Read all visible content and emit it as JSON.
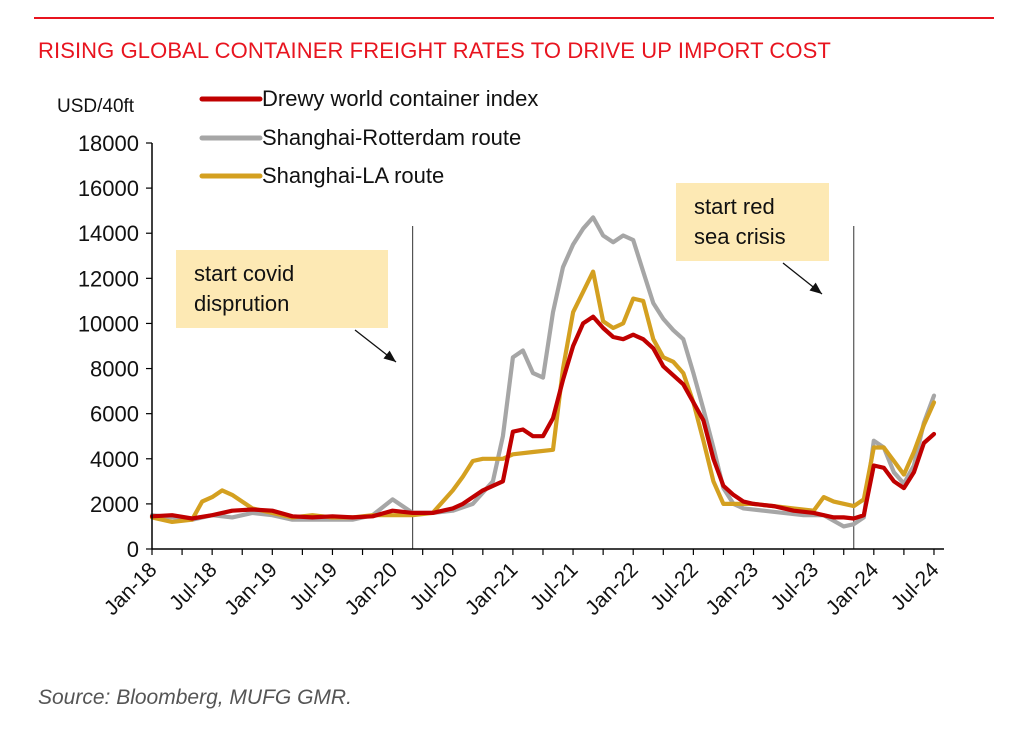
{
  "title": "RISING GLOBAL CONTAINER FREIGHT RATES TO DRIVE UP IMPORT COST",
  "source": "Source: Bloomberg, MUFG GMR.",
  "chart_data": {
    "type": "line",
    "ylabel": "USD/40ft",
    "ylim": [
      0,
      18000
    ],
    "yticks": [
      "0",
      "2000",
      "4000",
      "6000",
      "8000",
      "10000",
      "12000",
      "14000",
      "16000",
      "18000"
    ],
    "xlim": [
      "2018-01",
      "2024-08"
    ],
    "xticks": [
      {
        "label": "Jan-18",
        "date": "2018-01"
      },
      {
        "label": "Jul-18",
        "date": "2018-07"
      },
      {
        "label": "Jan-19",
        "date": "2019-01"
      },
      {
        "label": "Jul-19",
        "date": "2019-07"
      },
      {
        "label": "Jan-20",
        "date": "2020-01"
      },
      {
        "label": "Jul-20",
        "date": "2020-07"
      },
      {
        "label": "Jan-21",
        "date": "2021-01"
      },
      {
        "label": "Jul-21",
        "date": "2021-07"
      },
      {
        "label": "Jan-22",
        "date": "2022-01"
      },
      {
        "label": "Jul-22",
        "date": "2022-07"
      },
      {
        "label": "Jan-23",
        "date": "2023-01"
      },
      {
        "label": "Jul-23",
        "date": "2023-07"
      },
      {
        "label": "Jan-24",
        "date": "2024-01"
      },
      {
        "label": "Jul-24",
        "date": "2024-07"
      }
    ],
    "grid": false,
    "legend_position": "top-left",
    "series": [
      {
        "name": "Drewy world container index",
        "color": "#c00000",
        "points": [
          [
            "2018-01",
            1450
          ],
          [
            "2018-03",
            1500
          ],
          [
            "2018-05",
            1350
          ],
          [
            "2018-07",
            1500
          ],
          [
            "2018-09",
            1700
          ],
          [
            "2018-11",
            1750
          ],
          [
            "2019-01",
            1700
          ],
          [
            "2019-03",
            1450
          ],
          [
            "2019-05",
            1400
          ],
          [
            "2019-07",
            1450
          ],
          [
            "2019-09",
            1400
          ],
          [
            "2019-11",
            1450
          ],
          [
            "2020-01",
            1700
          ],
          [
            "2020-03",
            1600
          ],
          [
            "2020-05",
            1600
          ],
          [
            "2020-07",
            1800
          ],
          [
            "2020-08",
            2000
          ],
          [
            "2020-10",
            2600
          ],
          [
            "2020-12",
            3000
          ],
          [
            "2021-01",
            5200
          ],
          [
            "2021-02",
            5300
          ],
          [
            "2021-03",
            5000
          ],
          [
            "2021-04",
            5000
          ],
          [
            "2021-05",
            5800
          ],
          [
            "2021-06",
            7500
          ],
          [
            "2021-07",
            9000
          ],
          [
            "2021-08",
            10000
          ],
          [
            "2021-09",
            10300
          ],
          [
            "2021-10",
            9800
          ],
          [
            "2021-11",
            9400
          ],
          [
            "2021-12",
            9300
          ],
          [
            "2022-01",
            9500
          ],
          [
            "2022-02",
            9300
          ],
          [
            "2022-03",
            8900
          ],
          [
            "2022-04",
            8100
          ],
          [
            "2022-05",
            7700
          ],
          [
            "2022-06",
            7300
          ],
          [
            "2022-07",
            6500
          ],
          [
            "2022-08",
            5700
          ],
          [
            "2022-09",
            4000
          ],
          [
            "2022-10",
            2800
          ],
          [
            "2022-11",
            2400
          ],
          [
            "2022-12",
            2100
          ],
          [
            "2023-01",
            2000
          ],
          [
            "2023-03",
            1900
          ],
          [
            "2023-05",
            1700
          ],
          [
            "2023-07",
            1600
          ],
          [
            "2023-09",
            1400
          ],
          [
            "2023-10",
            1400
          ],
          [
            "2023-11",
            1350
          ],
          [
            "2023-12",
            1500
          ],
          [
            "2024-01",
            3700
          ],
          [
            "2024-02",
            3600
          ],
          [
            "2024-03",
            3000
          ],
          [
            "2024-04",
            2700
          ],
          [
            "2024-05",
            3400
          ],
          [
            "2024-06",
            4700
          ],
          [
            "2024-07",
            5100
          ]
        ]
      },
      {
        "name": "Shanghai-Rotterdam route",
        "color": "#a6a6a6",
        "points": [
          [
            "2018-01",
            1500
          ],
          [
            "2018-03",
            1400
          ],
          [
            "2018-05",
            1300
          ],
          [
            "2018-07",
            1500
          ],
          [
            "2018-09",
            1400
          ],
          [
            "2018-11",
            1600
          ],
          [
            "2019-01",
            1500
          ],
          [
            "2019-03",
            1300
          ],
          [
            "2019-05",
            1300
          ],
          [
            "2019-07",
            1300
          ],
          [
            "2019-09",
            1300
          ],
          [
            "2019-11",
            1500
          ],
          [
            "2020-01",
            2200
          ],
          [
            "2020-02",
            1900
          ],
          [
            "2020-03",
            1600
          ],
          [
            "2020-05",
            1600
          ],
          [
            "2020-07",
            1700
          ],
          [
            "2020-09",
            2000
          ],
          [
            "2020-11",
            3000
          ],
          [
            "2020-12",
            5000
          ],
          [
            "2021-01",
            8500
          ],
          [
            "2021-02",
            8800
          ],
          [
            "2021-03",
            7800
          ],
          [
            "2021-04",
            7600
          ],
          [
            "2021-05",
            10500
          ],
          [
            "2021-06",
            12500
          ],
          [
            "2021-07",
            13500
          ],
          [
            "2021-08",
            14200
          ],
          [
            "2021-09",
            14700
          ],
          [
            "2021-10",
            13900
          ],
          [
            "2021-11",
            13600
          ],
          [
            "2021-12",
            13900
          ],
          [
            "2022-01",
            13700
          ],
          [
            "2022-02",
            12300
          ],
          [
            "2022-03",
            10900
          ],
          [
            "2022-04",
            10200
          ],
          [
            "2022-05",
            9700
          ],
          [
            "2022-06",
            9300
          ],
          [
            "2022-07",
            7800
          ],
          [
            "2022-08",
            6200
          ],
          [
            "2022-09",
            4500
          ],
          [
            "2022-10",
            2700
          ],
          [
            "2022-11",
            2000
          ],
          [
            "2022-12",
            1800
          ],
          [
            "2023-02",
            1700
          ],
          [
            "2023-04",
            1600
          ],
          [
            "2023-06",
            1500
          ],
          [
            "2023-08",
            1500
          ],
          [
            "2023-10",
            1000
          ],
          [
            "2023-11",
            1100
          ],
          [
            "2023-12",
            1400
          ],
          [
            "2024-01",
            4800
          ],
          [
            "2024-02",
            4500
          ],
          [
            "2024-03",
            3400
          ],
          [
            "2024-04",
            2900
          ],
          [
            "2024-05",
            3700
          ],
          [
            "2024-06",
            5600
          ],
          [
            "2024-07",
            6800
          ]
        ]
      },
      {
        "name": "Shanghai-LA route",
        "color": "#d4a020",
        "points": [
          [
            "2018-01",
            1400
          ],
          [
            "2018-03",
            1200
          ],
          [
            "2018-05",
            1300
          ],
          [
            "2018-06",
            2100
          ],
          [
            "2018-07",
            2300
          ],
          [
            "2018-08",
            2600
          ],
          [
            "2018-09",
            2400
          ],
          [
            "2018-11",
            1800
          ],
          [
            "2019-01",
            1600
          ],
          [
            "2019-03",
            1400
          ],
          [
            "2019-05",
            1500
          ],
          [
            "2019-07",
            1400
          ],
          [
            "2019-09",
            1400
          ],
          [
            "2019-11",
            1500
          ],
          [
            "2020-01",
            1500
          ],
          [
            "2020-03",
            1500
          ],
          [
            "2020-05",
            1600
          ],
          [
            "2020-07",
            2600
          ],
          [
            "2020-08",
            3200
          ],
          [
            "2020-09",
            3900
          ],
          [
            "2020-10",
            4000
          ],
          [
            "2020-12",
            4000
          ],
          [
            "2021-01",
            4200
          ],
          [
            "2021-03",
            4300
          ],
          [
            "2021-05",
            4400
          ],
          [
            "2021-06",
            8000
          ],
          [
            "2021-07",
            10500
          ],
          [
            "2021-08",
            11400
          ],
          [
            "2021-09",
            12300
          ],
          [
            "2021-10",
            10100
          ],
          [
            "2021-11",
            9800
          ],
          [
            "2021-12",
            10000
          ],
          [
            "2022-01",
            11100
          ],
          [
            "2022-02",
            11000
          ],
          [
            "2022-03",
            9300
          ],
          [
            "2022-04",
            8500
          ],
          [
            "2022-05",
            8300
          ],
          [
            "2022-06",
            7800
          ],
          [
            "2022-07",
            6500
          ],
          [
            "2022-08",
            4800
          ],
          [
            "2022-09",
            3000
          ],
          [
            "2022-10",
            2000
          ],
          [
            "2022-11",
            2000
          ],
          [
            "2023-01",
            2000
          ],
          [
            "2023-03",
            1900
          ],
          [
            "2023-05",
            1800
          ],
          [
            "2023-07",
            1700
          ],
          [
            "2023-08",
            2300
          ],
          [
            "2023-09",
            2100
          ],
          [
            "2023-11",
            1900
          ],
          [
            "2023-12",
            2200
          ],
          [
            "2024-01",
            4500
          ],
          [
            "2024-02",
            4500
          ],
          [
            "2024-03",
            3900
          ],
          [
            "2024-04",
            3300
          ],
          [
            "2024-05",
            4300
          ],
          [
            "2024-06",
            5500
          ],
          [
            "2024-07",
            6500
          ]
        ]
      }
    ],
    "events": [
      {
        "date": "2020-03",
        "label": [
          "start covid",
          "disprution"
        ]
      },
      {
        "date": "2023-11",
        "label": [
          "start red",
          "sea crisis"
        ]
      }
    ]
  }
}
